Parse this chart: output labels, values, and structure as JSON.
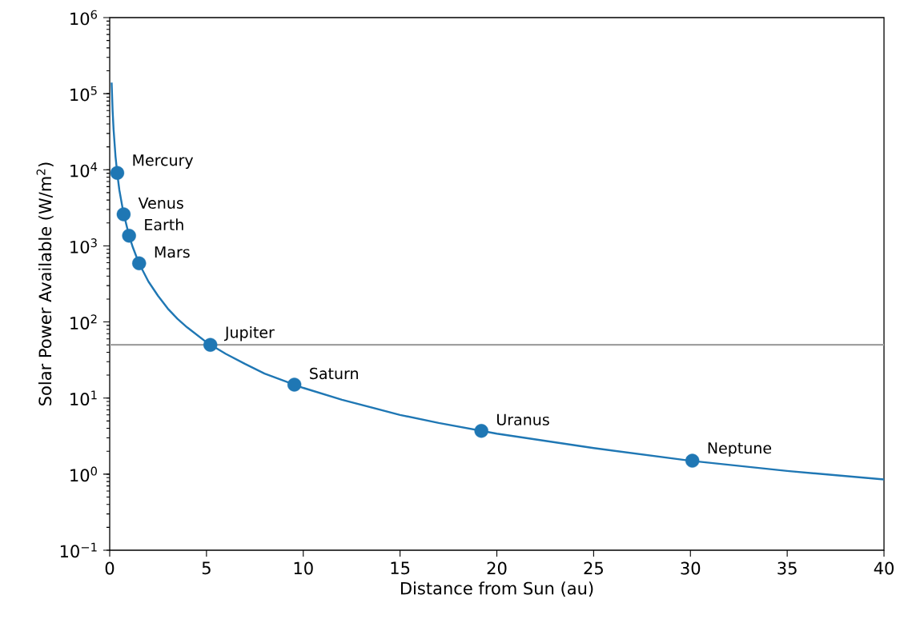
{
  "chart_data": {
    "type": "line",
    "xlabel": "Distance from Sun (au)",
    "ylabel": "Solar Power Available (W/m$^{2}$)",
    "log": "y",
    "grid": false,
    "xlim": [
      0,
      40
    ],
    "xticks": [
      0,
      5,
      10,
      15,
      20,
      25,
      30,
      35,
      40
    ],
    "ylim": [
      0.1,
      1000000
    ],
    "yticks": [
      {
        "value": 0.1,
        "label": "10$^{−1}$"
      },
      {
        "value": 1,
        "label": "10$^{0}$"
      },
      {
        "value": 10,
        "label": "10$^{1}$"
      },
      {
        "value": 100,
        "label": "10$^{2}$"
      },
      {
        "value": 1000,
        "label": "10$^{3}$"
      },
      {
        "value": 10000,
        "label": "10$^{4}$"
      },
      {
        "value": 100000,
        "label": "10$^{5}$"
      },
      {
        "value": 1000000,
        "label": "10$^{6}$"
      }
    ],
    "ref_lines": [
      {
        "axis": "y",
        "value": 50,
        "color": "#a0a0a0"
      }
    ],
    "series": [
      {
        "color": "#1f77b4",
        "marker": "none",
        "line_style": "solid",
        "x": [
          0.1,
          0.15,
          0.2,
          0.3,
          0.4,
          0.5,
          0.7,
          1,
          1.2,
          1.5,
          2,
          2.5,
          3,
          3.5,
          4,
          5,
          6,
          7,
          8,
          10,
          12,
          15,
          17,
          20,
          25,
          30,
          35,
          40
        ],
        "values": [
          140000,
          60000,
          34000,
          15000,
          8500,
          5400,
          2800,
          1360,
          950,
          600,
          340,
          220,
          150,
          110,
          85,
          54,
          38,
          28,
          21,
          13.6,
          9.5,
          6,
          4.7,
          3.4,
          2.2,
          1.5,
          1.1,
          0.85
        ]
      },
      {
        "type": "scatter",
        "color": "#1f77b4",
        "marker": "circle",
        "x": [
          0.39,
          0.72,
          1.0,
          1.52,
          5.2,
          9.54,
          19.2,
          30.1
        ],
        "values": [
          9100,
          2600,
          1360,
          590,
          50,
          15,
          3.7,
          1.5
        ]
      }
    ],
    "annotations": [
      {
        "text": "Mercury",
        "x": 0.39,
        "y": 9100
      },
      {
        "text": "Venus",
        "x": 0.72,
        "y": 2600
      },
      {
        "text": "Earth",
        "x": 1.0,
        "y": 1360
      },
      {
        "text": "Mars",
        "x": 1.52,
        "y": 590
      },
      {
        "text": "Jupiter",
        "x": 5.2,
        "y": 50
      },
      {
        "text": "Saturn",
        "x": 9.54,
        "y": 15
      },
      {
        "text": "Uranus",
        "x": 19.2,
        "y": 3.7
      },
      {
        "text": "Neptune",
        "x": 30.1,
        "y": 1.5
      }
    ]
  }
}
